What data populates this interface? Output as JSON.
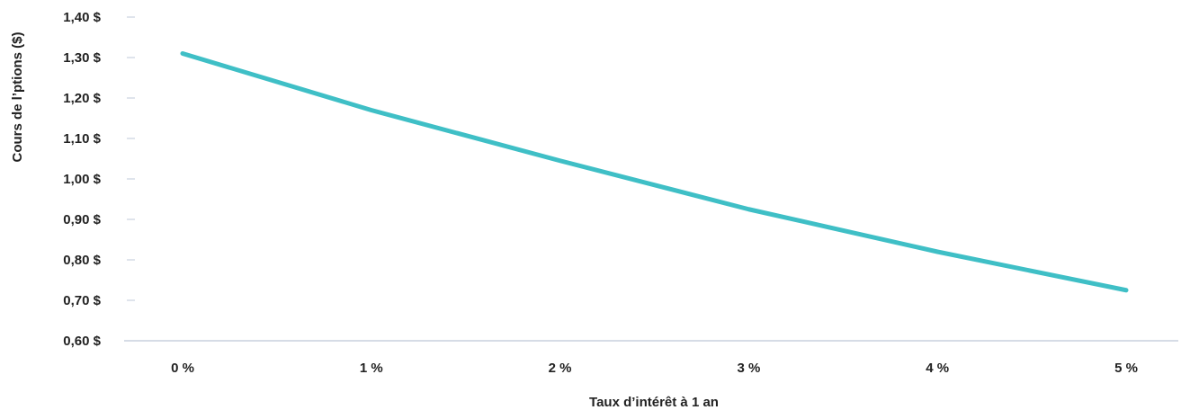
{
  "chart_data": {
    "type": "line",
    "xlabel": "Taux d’intérêt à 1 an",
    "ylabel": "Cours de l’ptions ($)",
    "x_categories": [
      "0 %",
      "1 %",
      "2 %",
      "3 %",
      "4 %",
      "5 %"
    ],
    "y_ticks": [
      0.6,
      0.7,
      0.8,
      0.9,
      1.0,
      1.1,
      1.2,
      1.3,
      1.4
    ],
    "y_tick_labels": [
      "0,60 $",
      "0,70 $",
      "0,80 $",
      "0,90 $",
      "1,00 $",
      "1,10 $",
      "1,20 $",
      "1,30 $",
      "1,40 $"
    ],
    "ylim": [
      0.6,
      1.4
    ],
    "grid": false,
    "series": [
      {
        "values": [
          1.31,
          1.17,
          1.045,
          0.925,
          0.82,
          0.725
        ],
        "color": "#3fbfc6"
      }
    ],
    "colors": {
      "axis": "#c8d1de",
      "tick": "#d4dbe5",
      "text": "#222222"
    }
  }
}
